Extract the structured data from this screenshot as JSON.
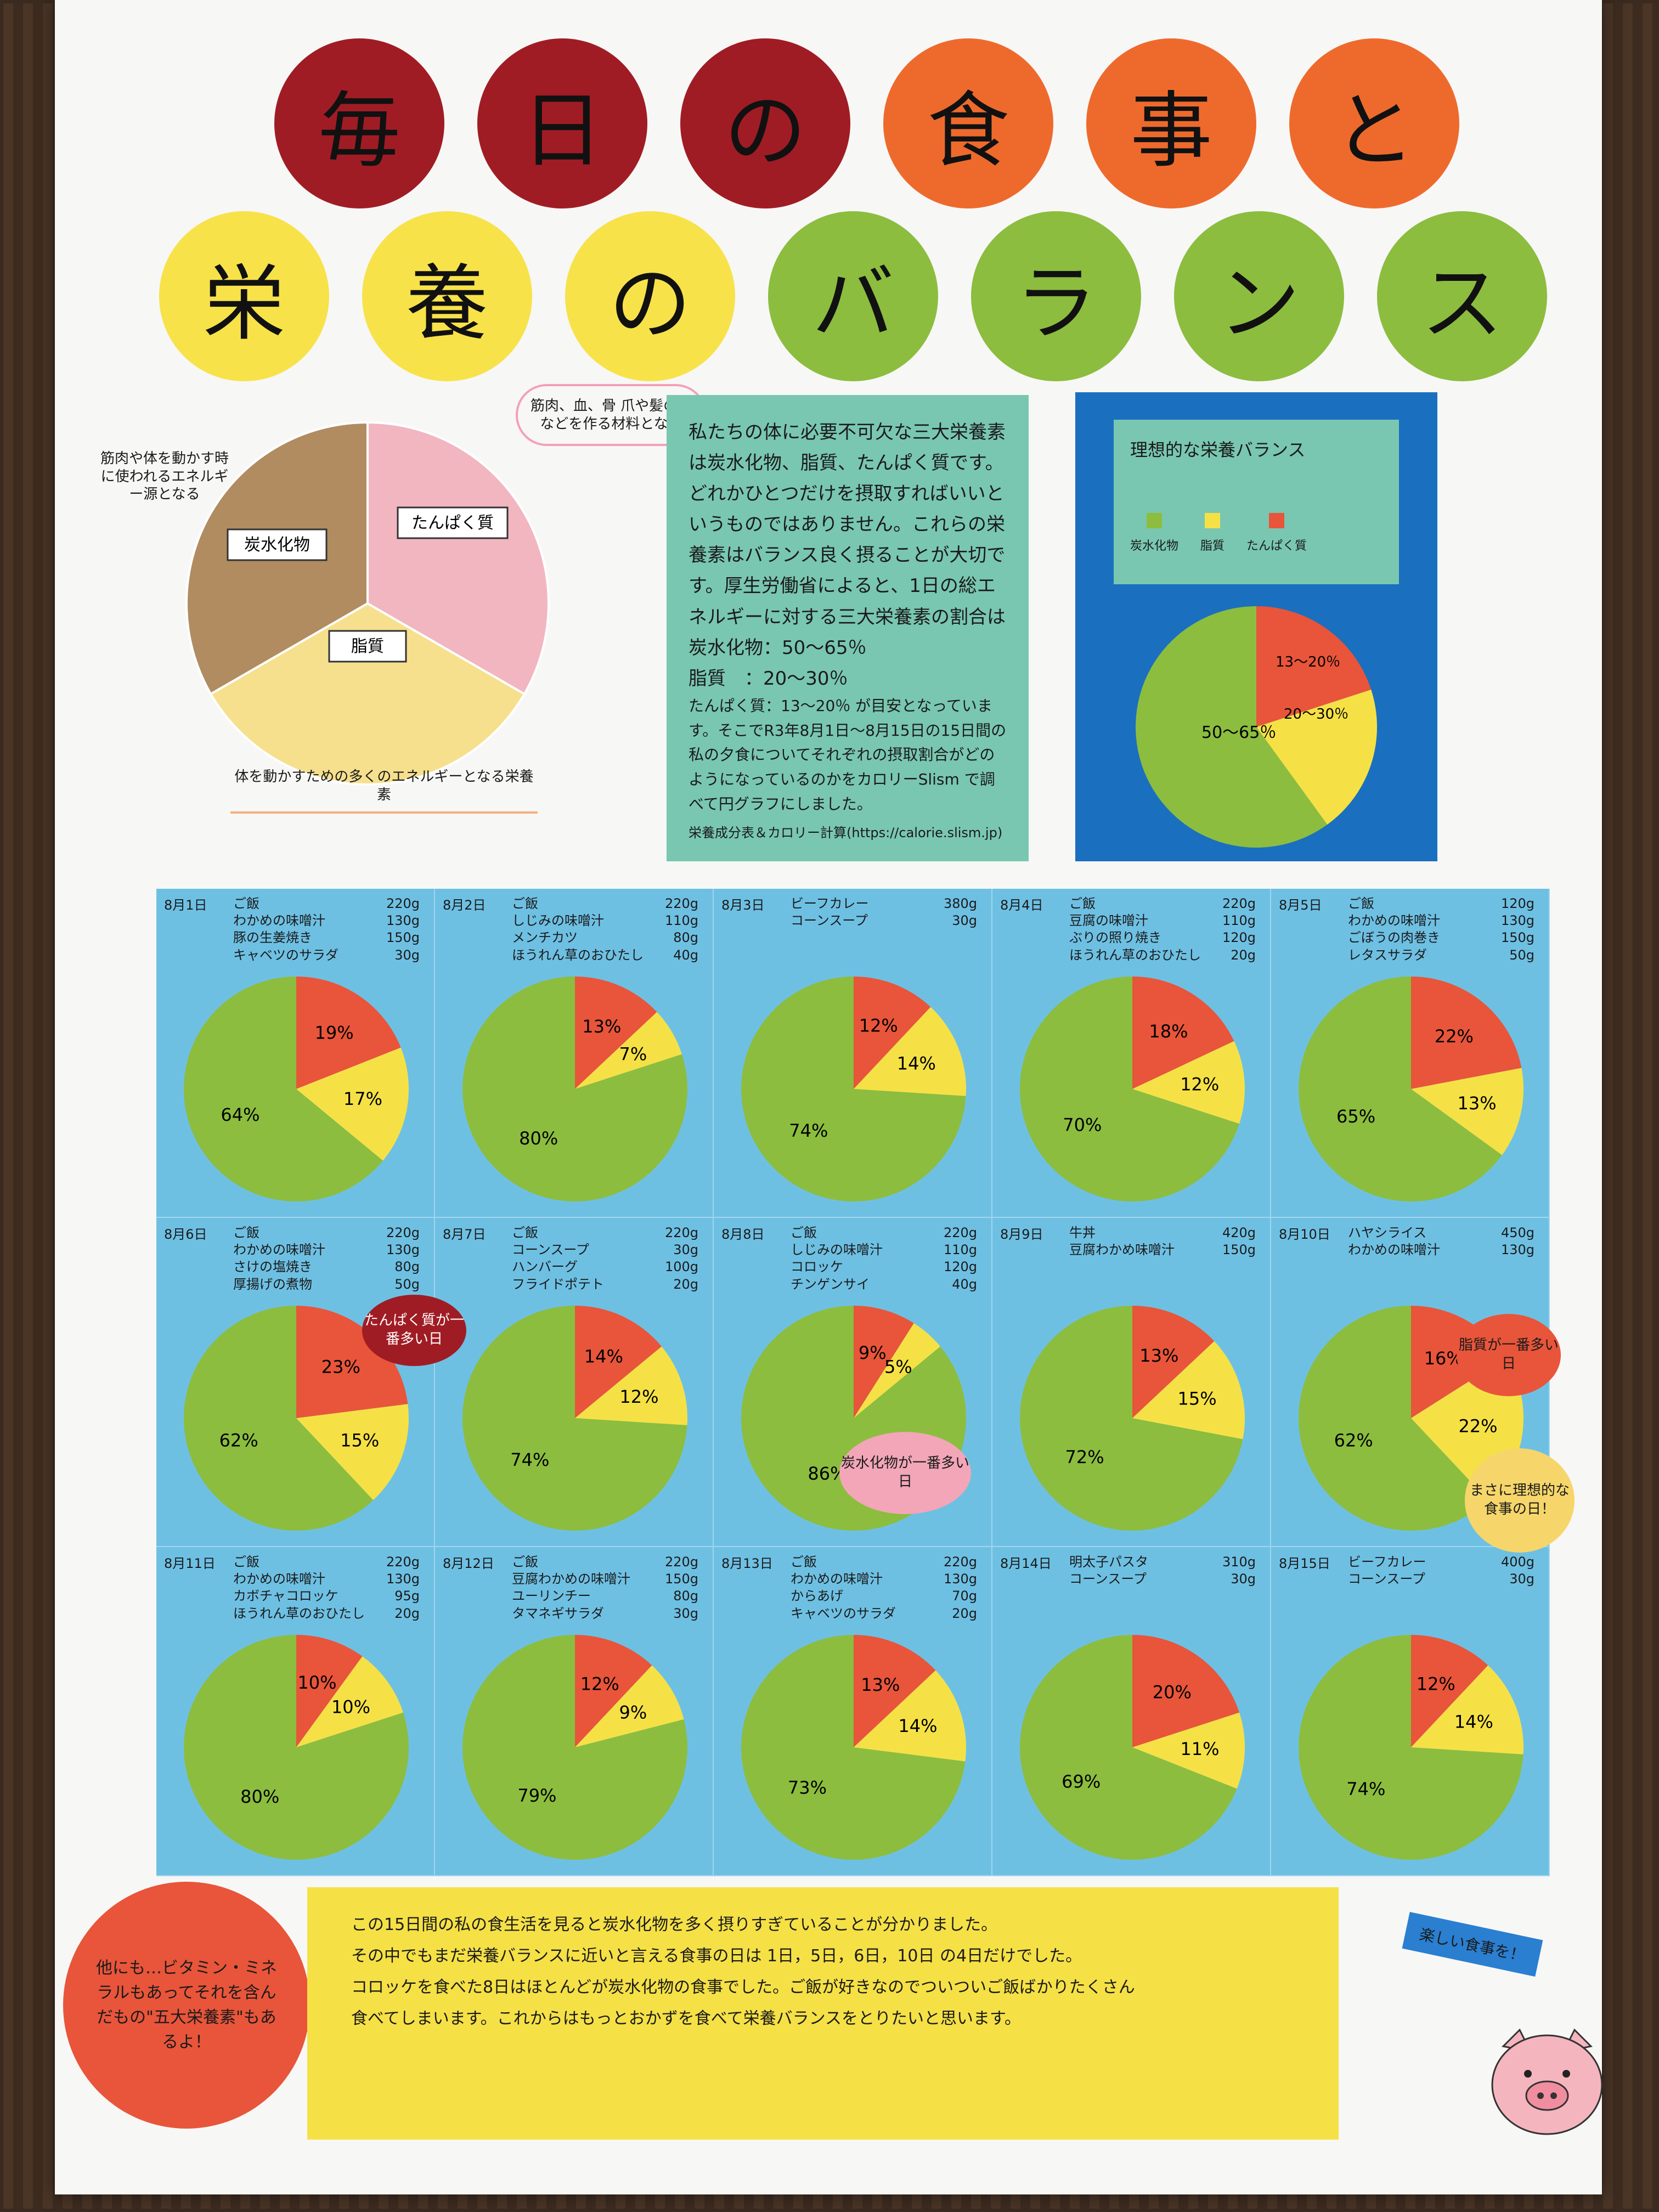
{
  "title_row1": [
    "毎",
    "日",
    "の",
    "食",
    "事",
    "と"
  ],
  "title_row2": [
    "栄",
    "養",
    "の",
    "バ",
    "ラ",
    "ン",
    "ス"
  ],
  "title_colors": {
    "row1": [
      "#a01c24",
      "#a01c24",
      "#a01c24",
      "#ee6a2c",
      "#ee6a2c",
      "#ee6a2c"
    ],
    "row2": [
      "#f7e24a",
      "#f7e24a",
      "#f7e24a",
      "#8cbd3f",
      "#8cbd3f",
      "#8cbd3f",
      "#8cbd3f"
    ]
  },
  "nutrient_pie": {
    "segments": [
      {
        "label": "炭水化物",
        "color": "#b18c60"
      },
      {
        "label": "たんぱく質",
        "color": "#f2b6c0"
      },
      {
        "label": "脂質",
        "color": "#f6e08e"
      }
    ],
    "notes": {
      "carb": "筋肉や体を動かす時に使われるエネルギー源となる",
      "protein": "筋肉、血、骨 爪や髪のもなどを作る材料となる",
      "fat": "体を動かすための多くのエネルギーとなる栄養素"
    }
  },
  "explanation": {
    "para1": "私たちの体に必要不可欠な三大栄養素は炭水化物、脂質、たんぱく質です。どれかひとつだけを摂取すればいいというものではありません。これらの栄養素はバランス良く摂ることが大切です。厚生労働省によると、1日の総エネルギーに対する三大栄養素の割合は",
    "carb": "炭水化物：50～65％",
    "fat": "脂質　：20～30％",
    "para2": "たんぱく質：13～20％ が目安となっています。そこでR3年8月1日～8月15日の15日間の私の夕食についてそれぞれの摂取割合がどのようになっているのかをカロリーSlism で調べて円グラフにしました。",
    "source": "栄養成分表＆カロリー計算(https://calorie.slism.jp)"
  },
  "ideal": {
    "title": "理想的な栄養バランス",
    "legend": [
      {
        "label": "炭水化物",
        "color": "#8cbd3f"
      },
      {
        "label": "脂質",
        "color": "#f5e146"
      },
      {
        "label": "たんぱく質",
        "color": "#e8553a"
      }
    ],
    "labels": {
      "carb": "50～65％",
      "fat": "20～30％",
      "protein": "13～20％"
    }
  },
  "colors": {
    "carb": "#8cbd3f",
    "fat": "#f5e146",
    "protein": "#e8553a",
    "cell_bg": "#6ec0e3"
  },
  "chart_data": [
    {
      "type": "pie",
      "title": "8月1日",
      "categories": [
        "炭水化物",
        "たんぱく質",
        "脂質"
      ],
      "values": [
        64,
        19,
        17
      ],
      "menu": [
        [
          "ご飯",
          "220g"
        ],
        [
          "わかめの味噌汁",
          "130g"
        ],
        [
          "豚の生姜焼き",
          "150g"
        ],
        [
          "キャベツのサラダ",
          "30g"
        ]
      ]
    },
    {
      "type": "pie",
      "title": "8月2日",
      "categories": [
        "炭水化物",
        "たんぱく質",
        "脂質"
      ],
      "values": [
        80,
        13,
        7
      ],
      "menu": [
        [
          "ご飯",
          "220g"
        ],
        [
          "しじみの味噌汁",
          "110g"
        ],
        [
          "メンチカツ",
          "80g"
        ],
        [
          "ほうれん草のおひたし",
          "40g"
        ]
      ]
    },
    {
      "type": "pie",
      "title": "8月3日",
      "categories": [
        "炭水化物",
        "たんぱく質",
        "脂質"
      ],
      "values": [
        74,
        12,
        14
      ],
      "menu": [
        [
          "ビーフカレー",
          "380g"
        ],
        [
          "コーンスープ",
          "30g"
        ]
      ]
    },
    {
      "type": "pie",
      "title": "8月4日",
      "categories": [
        "炭水化物",
        "たんぱく質",
        "脂質"
      ],
      "values": [
        70,
        18,
        12
      ],
      "menu": [
        [
          "ご飯",
          "220g"
        ],
        [
          "豆腐の味噌汁",
          "110g"
        ],
        [
          "ぶりの照り焼き",
          "120g"
        ],
        [
          "ほうれん草のおひたし",
          "20g"
        ]
      ]
    },
    {
      "type": "pie",
      "title": "8月5日",
      "categories": [
        "炭水化物",
        "たんぱく質",
        "脂質"
      ],
      "values": [
        65,
        22,
        13
      ],
      "menu": [
        [
          "ご飯",
          "120g"
        ],
        [
          "わかめの味噌汁",
          "130g"
        ],
        [
          "ごぼうの肉巻き",
          "150g"
        ],
        [
          "レタスサラダ",
          "50g"
        ]
      ]
    },
    {
      "type": "pie",
      "title": "8月6日",
      "categories": [
        "炭水化物",
        "たんぱく質",
        "脂質"
      ],
      "values": [
        62,
        23,
        15
      ],
      "menu": [
        [
          "ご飯",
          "220g"
        ],
        [
          "わかめの味噌汁",
          "130g"
        ],
        [
          "さけの塩焼き",
          "80g"
        ],
        [
          "厚揚げの煮物",
          "50g"
        ]
      ]
    },
    {
      "type": "pie",
      "title": "8月7日",
      "categories": [
        "炭水化物",
        "たんぱく質",
        "脂質"
      ],
      "values": [
        74,
        14,
        12
      ],
      "menu": [
        [
          "ご飯",
          "220g"
        ],
        [
          "コーンスープ",
          "30g"
        ],
        [
          "ハンバーグ",
          "100g"
        ],
        [
          "フライドポテト",
          "20g"
        ]
      ]
    },
    {
      "type": "pie",
      "title": "8月8日",
      "categories": [
        "炭水化物",
        "たんぱく質",
        "脂質"
      ],
      "values": [
        86,
        9,
        5
      ],
      "menu": [
        [
          "ご飯",
          "220g"
        ],
        [
          "しじみの味噌汁",
          "110g"
        ],
        [
          "コロッケ",
          "120g"
        ],
        [
          "チンゲンサイ",
          "40g"
        ]
      ]
    },
    {
      "type": "pie",
      "title": "8月9日",
      "categories": [
        "炭水化物",
        "たんぱく質",
        "脂質"
      ],
      "values": [
        72,
        13,
        15
      ],
      "menu": [
        [
          "牛丼",
          "420g"
        ],
        [
          "豆腐わかめ味噌汁",
          "150g"
        ]
      ]
    },
    {
      "type": "pie",
      "title": "8月10日",
      "categories": [
        "炭水化物",
        "たんぱく質",
        "脂質"
      ],
      "values": [
        62,
        16,
        22
      ],
      "menu": [
        [
          "ハヤシライス",
          "450g"
        ],
        [
          "わかめの味噌汁",
          "130g"
        ]
      ]
    },
    {
      "type": "pie",
      "title": "8月11日",
      "categories": [
        "炭水化物",
        "たんぱく質",
        "脂質"
      ],
      "values": [
        80,
        10,
        10
      ],
      "menu": [
        [
          "ご飯",
          "220g"
        ],
        [
          "わかめの味噌汁",
          "130g"
        ],
        [
          "カボチャコロッケ",
          "95g"
        ],
        [
          "ほうれん草のおひたし",
          "20g"
        ]
      ]
    },
    {
      "type": "pie",
      "title": "8月12日",
      "categories": [
        "炭水化物",
        "たんぱく質",
        "脂質"
      ],
      "values": [
        79,
        12,
        9
      ],
      "menu": [
        [
          "ご飯",
          "220g"
        ],
        [
          "豆腐わかめの味噌汁",
          "150g"
        ],
        [
          "ユーリンチー",
          "80g"
        ],
        [
          "タマネギサラダ",
          "30g"
        ]
      ]
    },
    {
      "type": "pie",
      "title": "8月13日",
      "categories": [
        "炭水化物",
        "たんぱく質",
        "脂質"
      ],
      "values": [
        73,
        13,
        14
      ],
      "menu": [
        [
          "ご飯",
          "220g"
        ],
        [
          "わかめの味噌汁",
          "130g"
        ],
        [
          "からあげ",
          "70g"
        ],
        [
          "キャベツのサラダ",
          "20g"
        ]
      ]
    },
    {
      "type": "pie",
      "title": "8月14日",
      "categories": [
        "炭水化物",
        "たんぱく質",
        "脂質"
      ],
      "values": [
        69,
        20,
        11
      ],
      "menu": [
        [
          "明太子パスタ",
          "310g"
        ],
        [
          "コーンスープ",
          "30g"
        ]
      ]
    },
    {
      "type": "pie",
      "title": "8月15日",
      "categories": [
        "炭水化物",
        "たんぱく質",
        "脂質"
      ],
      "values": [
        74,
        12,
        14
      ],
      "menu": [
        [
          "ビーフカレー",
          "400g"
        ],
        [
          "コーンスープ",
          "30g"
        ]
      ]
    }
  ],
  "callouts": {
    "aug6": "たんぱく質が一番多い日",
    "aug8": "炭水化物が一番多い日",
    "aug10": "脂質が一番多い日",
    "ideal": "まさに理想的な食事の日！"
  },
  "summary": [
    "この15日間の私の食生活を見ると炭水化物を多く摂りすぎていることが分かりました。",
    "その中でもまだ栄養バランスに近いと言える食事の日は 1日，5日，6日，10日 の4日だけでした。",
    "コロッケを食べた8日はほとんどが炭水化物の食事でした。ご飯が好きなのでついついご飯ばかりたくさん",
    "食べてしまいます。これからはもっとおかずを食べて栄養バランスをとりたいと思います。"
  ],
  "extra_note": "他にも…ビタミン・ミネラルもあってそれを含んだもの\"五大栄養素\"もあるよ！",
  "pig_tag": "楽しい食事を！"
}
